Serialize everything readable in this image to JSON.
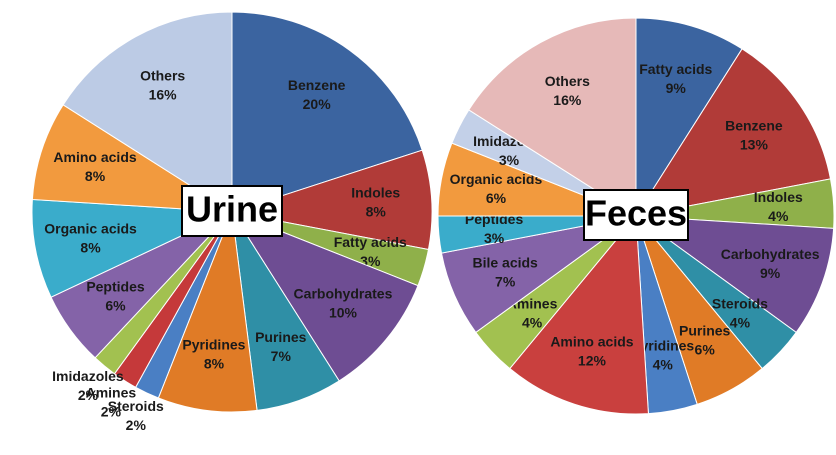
{
  "chart_data": [
    {
      "type": "pie",
      "title": "Urine",
      "categories": [
        "Benzene",
        "Indoles",
        "Fatty acids",
        "Carbohydrates",
        "Purines",
        "Pyridines",
        "Steroids",
        "Amines",
        "Imidazoles",
        "Peptides",
        "Organic acids",
        "Amino acids",
        "Others"
      ],
      "values": [
        20,
        8,
        3,
        10,
        7,
        8,
        2,
        2,
        2,
        6,
        8,
        8,
        16
      ],
      "value_labels": [
        "20%",
        "8%",
        "3%",
        "10%",
        "7%",
        "8%",
        "2%",
        "2%",
        "2%",
        "6%",
        "8%",
        "8%",
        "16%"
      ],
      "colors": [
        "#3b64a0",
        "#b13b38",
        "#8fb04a",
        "#6e4d93",
        "#2f8fa6",
        "#e07b26",
        "#4a7fc4",
        "#c5393a",
        "#a2c150",
        "#8463a8",
        "#3aaccb",
        "#f29a3e",
        "#bccbe5"
      ]
    },
    {
      "type": "pie",
      "title": "Feces",
      "categories": [
        "Fatty acids",
        "Benzene",
        "Indoles",
        "Carbohydrates",
        "Steroids",
        "Purines",
        "Pyridines",
        "Amino acids",
        "Amines",
        "Bile acids",
        "Peptides",
        "Organic acids",
        "Imidazoles",
        "Others"
      ],
      "values": [
        9,
        13,
        4,
        9,
        4,
        6,
        4,
        12,
        4,
        7,
        3,
        6,
        3,
        16
      ],
      "value_labels": [
        "9%",
        "13%",
        "4%",
        "9%",
        "4%",
        "6%",
        "4%",
        "12%",
        "4%",
        "7%",
        "3%",
        "6%",
        "3%",
        "16%"
      ],
      "colors": [
        "#3b64a0",
        "#b13b38",
        "#8fb04a",
        "#6e4d93",
        "#2f8fa6",
        "#e07b26",
        "#4a7fc4",
        "#c9403e",
        "#a2c150",
        "#8463a8",
        "#3aaccb",
        "#f29a3e",
        "#c3d0e8",
        "#e6b9b8"
      ]
    }
  ]
}
